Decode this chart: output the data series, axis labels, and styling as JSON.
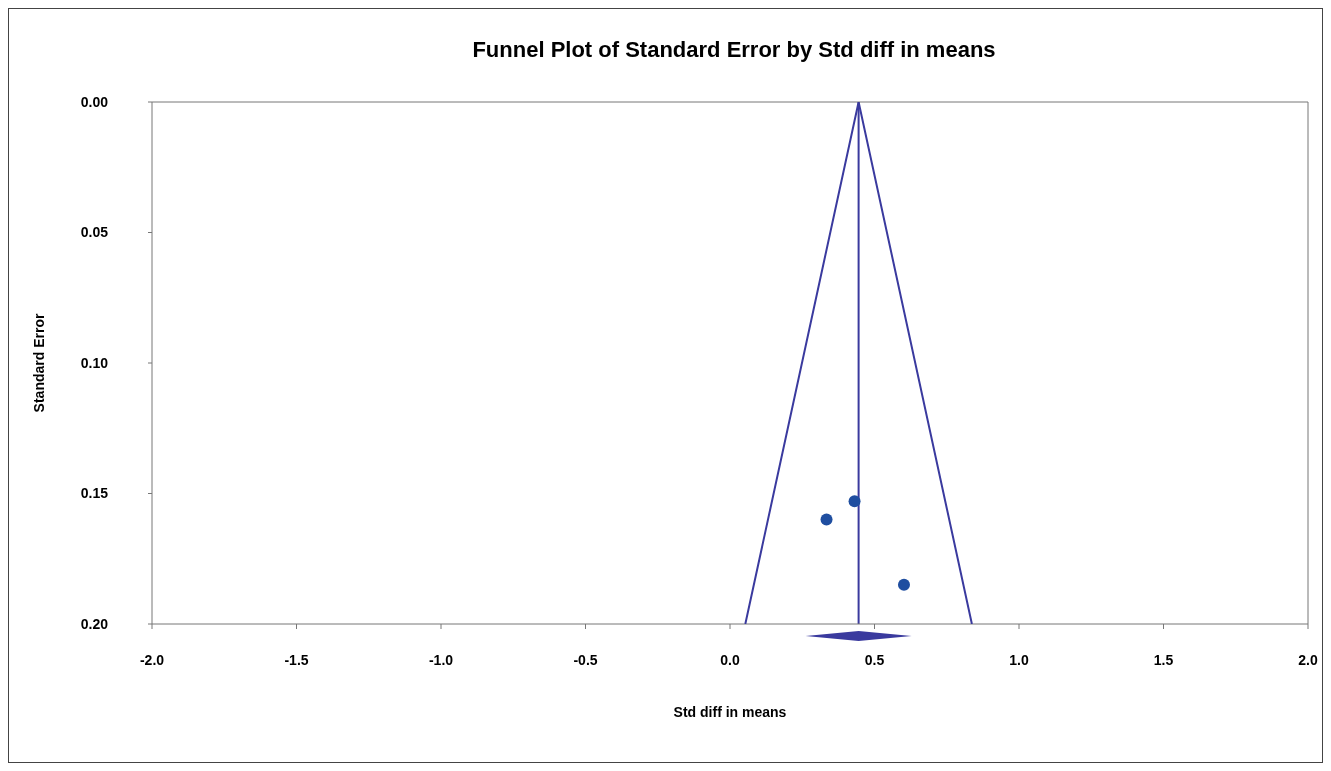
{
  "chart_data": {
    "type": "scatter",
    "title": "Funnel Plot of Standard Error by Std diff in means",
    "xlabel": "Std diff in means",
    "ylabel": "Standard Error",
    "series": [
      {
        "type": "line",
        "marker": "none",
        "color": "#3a3a9e",
        "x": [
          0.053,
          0.445,
          0.837
        ],
        "values": [
          0.2,
          0.0,
          0.2
        ]
      },
      {
        "color": "#1f4ea0",
        "x": [
          0.334,
          0.431,
          0.602
        ],
        "values": [
          0.16,
          0.153,
          0.185
        ]
      }
    ],
    "ref_lines": [
      {
        "axis": "x",
        "value": 0.445,
        "color": "#3a3a9e"
      }
    ],
    "xlim": [
      -2.0,
      2.0
    ],
    "xticks": [
      {
        "value": -2,
        "label": "-2.0"
      },
      {
        "value": -1.5,
        "label": "-1.5"
      },
      {
        "value": -1,
        "label": "-1.0"
      },
      {
        "value": -0.5,
        "label": "-0.5"
      },
      {
        "value": 0,
        "label": "0.0"
      },
      {
        "value": 0.5,
        "label": "0.5"
      },
      {
        "value": 1,
        "label": "1.0"
      },
      {
        "value": 1.5,
        "label": "1.5"
      },
      {
        "value": 2,
        "label": "2.0"
      }
    ],
    "ylim": [
      0.2,
      0.0
    ],
    "yticks": [
      {
        "value": 0,
        "label": "0.00"
      },
      {
        "value": 0.05,
        "label": "0.05"
      },
      {
        "value": 0.1,
        "label": "0.10"
      },
      {
        "value": 0.15,
        "label": "0.15"
      },
      {
        "value": 0.2,
        "label": "0.20"
      }
    ],
    "marker": "circle"
  }
}
